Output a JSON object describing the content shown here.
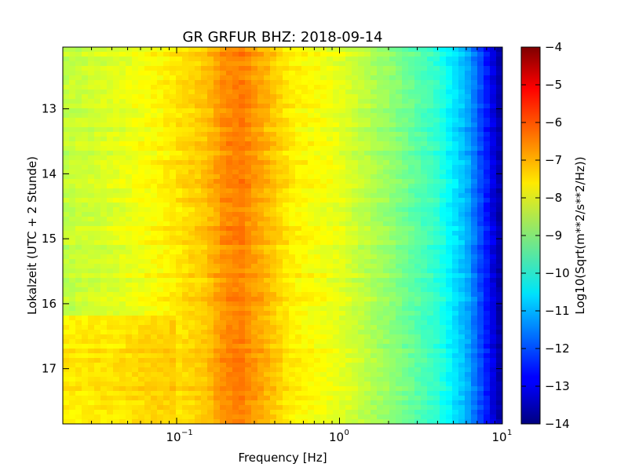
{
  "chart_data": {
    "type": "heatmap",
    "title": "GR GRFUR BHZ: 2018-09-14",
    "xlabel": "Frequency [Hz]",
    "ylabel": "Lokalzeit (UTC + 2 Stunde)",
    "x_scale": "log",
    "xlim": [
      0.02,
      10
    ],
    "x_ticks": [
      {
        "value": 0.1,
        "base": "10",
        "exp": "−1"
      },
      {
        "value": 1,
        "base": "10",
        "exp": "0"
      },
      {
        "value": 10,
        "base": "10",
        "exp": "1"
      }
    ],
    "y_inverted": true,
    "ylim": [
      12.05,
      17.85
    ],
    "y_ticks": [
      13,
      14,
      15,
      16,
      17
    ],
    "colorbar": {
      "label": "Log10(Sqrt(m**2/s**2/Hz))",
      "range": [
        -14,
        -4
      ],
      "ticks": [
        -4,
        -5,
        -6,
        -7,
        -8,
        -9,
        -10,
        -11,
        -12,
        -13,
        -14
      ],
      "colormap": "jet"
    },
    "spectrum_profile": [
      {
        "frequency": 0.02,
        "value": -8.4
      },
      {
        "frequency": 0.04,
        "value": -8.1
      },
      {
        "frequency": 0.08,
        "value": -7.7
      },
      {
        "frequency": 0.15,
        "value": -7.2
      },
      {
        "frequency": 0.2,
        "value": -6.6
      },
      {
        "frequency": 0.25,
        "value": -6.5
      },
      {
        "frequency": 0.35,
        "value": -7.0
      },
      {
        "frequency": 0.5,
        "value": -7.6
      },
      {
        "frequency": 1,
        "value": -8.0
      },
      {
        "frequency": 2,
        "value": -8.8
      },
      {
        "frequency": 4,
        "value": -9.8
      },
      {
        "frequency": 6,
        "value": -11.0
      },
      {
        "frequency": 8,
        "value": -12.5
      },
      {
        "frequency": 10,
        "value": -13.8
      }
    ],
    "late_window_enhancement": {
      "time_range": [
        16.2,
        17.85
      ],
      "frequency_range": [
        0.02,
        0.1
      ],
      "delta": 0.8
    }
  }
}
